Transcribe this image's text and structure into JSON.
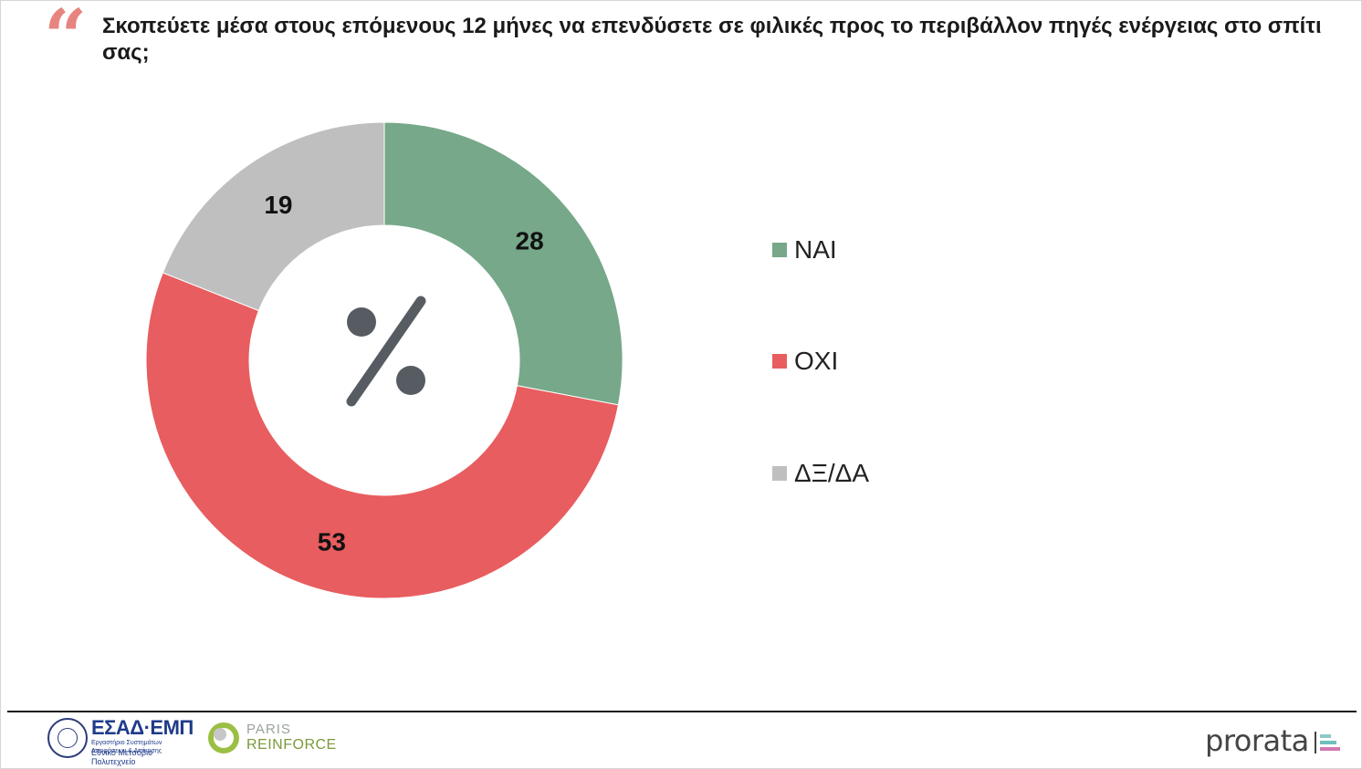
{
  "question": "Σκοπεύετε μέσα στους επόμενους 12 μήνες να επενδύσετε σε φιλικές προς το περιβάλλον πηγές ενέργειας στο σπίτι σας;",
  "quote_glyph": "“",
  "center_symbol": "percent-icon",
  "chart_data": {
    "type": "pie",
    "donut": true,
    "unit": "%",
    "categories": [
      "ΝΑΙ",
      "ΟΧΙ",
      "ΔΞ/ΔΑ"
    ],
    "values": [
      28,
      53,
      19
    ],
    "colors": [
      "#76a889",
      "#e85d5f",
      "#bfbfbf"
    ],
    "start_angle": "12 o'clock",
    "direction": "clockwise",
    "legend_position": "right"
  },
  "footer": {
    "esad_name": "ΕΣΑΔ·ΕΜΠ",
    "esad_subtitle": "Εργαστήριο Συστημάτων Αποφάσεων & Διοίκησης",
    "esad_university": "Εθνικό Μετσόβιο Πολυτεχνείο",
    "paris_line1": "PARIS",
    "paris_line2": "REINFORCE",
    "prorata": "prorata",
    "prorata_mark_colors": [
      "#8ec9c8",
      "#6fbfbd",
      "#d17ab1"
    ]
  }
}
